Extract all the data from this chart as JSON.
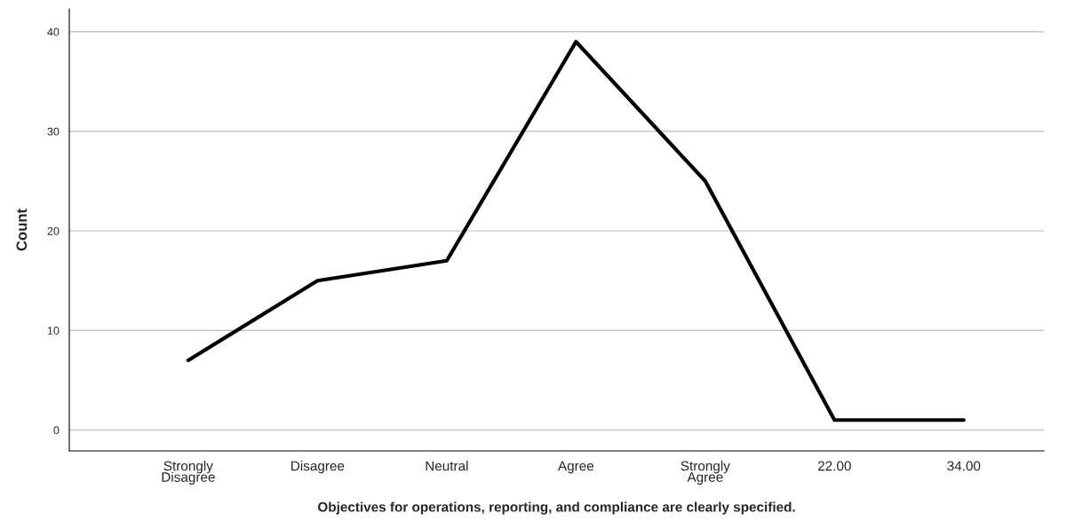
{
  "chart_data": {
    "type": "line",
    "xlabel": "Objectives for operations, reporting, and compliance are clearly specified.",
    "ylabel": "Count",
    "categories": [
      "Strongly\nDisagree",
      "Disagree",
      "Neutral",
      "Agree",
      "Strongly\nAgree",
      "22.00",
      "34.00"
    ],
    "series": [
      {
        "color": "#000000",
        "values": [
          7,
          15,
          17,
          39,
          25,
          1,
          1
        ]
      }
    ],
    "ylim": [
      -2.1,
      42.3
    ],
    "yticks": [
      0,
      10,
      20,
      30,
      40
    ],
    "grid": "y",
    "legend": false,
    "marker": "none",
    "line_style": "solid"
  }
}
